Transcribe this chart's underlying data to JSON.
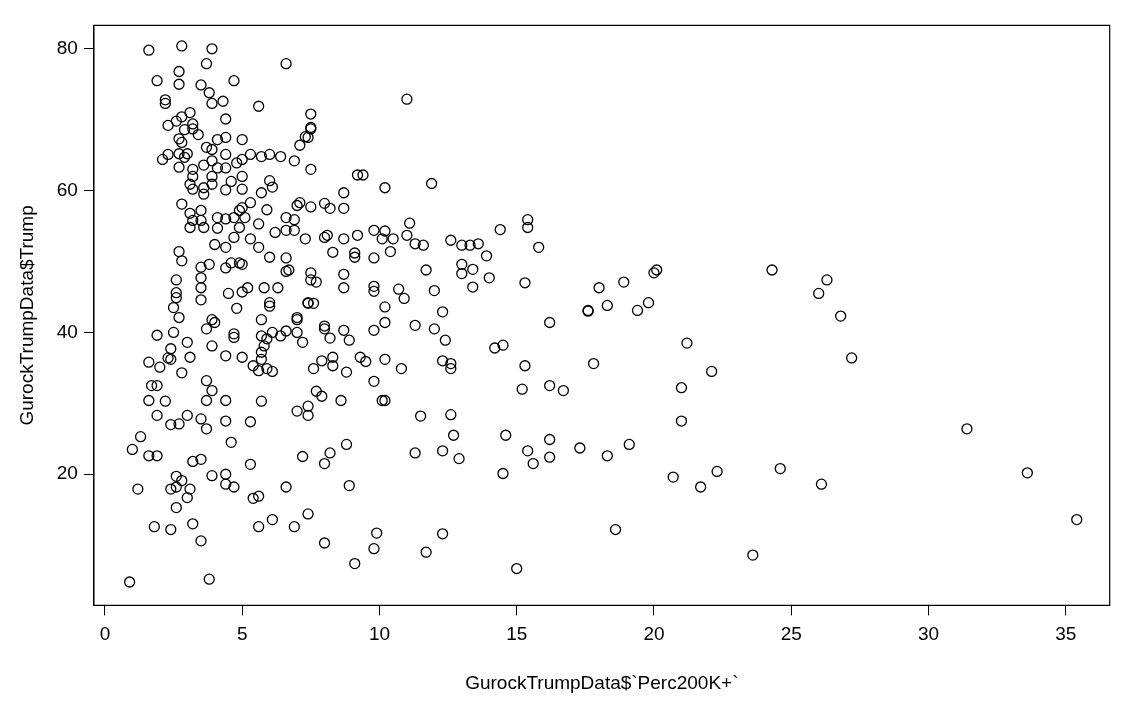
{
  "chart_data": {
    "type": "scatter",
    "xlabel": "GurockTrumpData$`Perc200K+`",
    "ylabel": "GurockTrumpData$Trump",
    "marker": "circle",
    "xlim": [
      -0.4,
      36.6
    ],
    "ylim": [
      1.5,
      83.3
    ],
    "xticks": [
      0,
      5,
      10,
      15,
      20,
      25,
      30,
      35
    ],
    "yticks": [
      20,
      40,
      60,
      80
    ],
    "series": [
      {
        "color": "#000000",
        "x": [
          35.4,
          33.6,
          31.4,
          18.9,
          20.0,
          20.1,
          24.3,
          26.3,
          26.0,
          26.8,
          27.2,
          18.3,
          19.4,
          19.8,
          21.2,
          22.1,
          21.0,
          21.0,
          19.1,
          18.3,
          20.7,
          21.7,
          22.3,
          24.6,
          26.1,
          18.6,
          23.6,
          8.0,
          8.0,
          8.7,
          8.2,
          8.9,
          9.8,
          10.2,
          11.3,
          12.0,
          12.4,
          12.3,
          16.2,
          17.6,
          14.2,
          14.5,
          15.3,
          17.8,
          15.2,
          16.2,
          16.7,
          7.9,
          7.6,
          8.3,
          8.3,
          8.8,
          9.3,
          9.5,
          10.2,
          10.8,
          12.3,
          12.6,
          12.6,
          9.8,
          7.7,
          7.9,
          8.6,
          10.1,
          10.2,
          7.4,
          7.4,
          11.5,
          12.6,
          12.7,
          14.6,
          16.2,
          17.3,
          15.4,
          15.6,
          16.2,
          14.5,
          8.8,
          8.2,
          8.0,
          11.3,
          12.3,
          12.9,
          8.9,
          7.4,
          8.0,
          9.9,
          9.8,
          9.1,
          11.7,
          12.3,
          15.0,
          11.0,
          7.5,
          7.5,
          7.4,
          7.5,
          9.2,
          9.4,
          10.2,
          11.9,
          8.7,
          8.7,
          8.0,
          8.2,
          7.5,
          11.1,
          14.4,
          15.4,
          15.4,
          15.8,
          9.8,
          10.2,
          9.2,
          8.0,
          8.1,
          8.7,
          10.1,
          10.5,
          11.0,
          11.3,
          11.6,
          12.6,
          13.0,
          13.3,
          13.6,
          13.9,
          8.3,
          9.1,
          9.1,
          9.8,
          10.4,
          11.7,
          13.0,
          13.0,
          13.4,
          14.0,
          15.3,
          18.0,
          17.6,
          7.5,
          7.5,
          7.7,
          8.7,
          8.7,
          9.8,
          9.8,
          10.7,
          10.9,
          12.0,
          13.4,
          10.2,
          7.4,
          7.6,
          1.6,
          2.8,
          3.9,
          3.7,
          6.6,
          2.7,
          1.9,
          2.7,
          3.5,
          4.7,
          3.8,
          4.3,
          3.9,
          2.2,
          2.2,
          5.6,
          3.1,
          2.8,
          4.4,
          2.3,
          2.6,
          3.2,
          7.5,
          7.3,
          7.1,
          2.9,
          3.2,
          3.4,
          2.7,
          2.8,
          4.1,
          4.4,
          5.0,
          3.7,
          3.9,
          2.3,
          2.1,
          2.7,
          2.9,
          3.0,
          4.4,
          5.3,
          5.7,
          6.0,
          6.4,
          6.9,
          2.7,
          3.2,
          3.2,
          3.6,
          3.9,
          4.1,
          4.8,
          5.0,
          4.4,
          3.9,
          3.9,
          5.0,
          6.0,
          6.1,
          5.7,
          3.1,
          3.2,
          4.6,
          4.4,
          5.0,
          3.6,
          3.6,
          5.9,
          6.9,
          6.6,
          7.0,
          7.1,
          5.3,
          5.0,
          2.8,
          3.1,
          3.2,
          3.1,
          3.5,
          3.5,
          3.6,
          4.1,
          4.4,
          4.7,
          4.1,
          4.9,
          5.1,
          4.9,
          5.6,
          6.2,
          6.6,
          6.9,
          7.3,
          4.7,
          4.4,
          4.0,
          5.3,
          5.6,
          6.0,
          6.6,
          6.6,
          6.7,
          2.7,
          2.8,
          3.8,
          3.5,
          4.4,
          4.6,
          4.9,
          5.0,
          2.6,
          3.5,
          3.5,
          3.5,
          2.6,
          2.6,
          2.5,
          4.5,
          5.0,
          5.2,
          5.8,
          6.3,
          4.8,
          6.0,
          6.0,
          7.0,
          7.4,
          3.9,
          2.7,
          2.5,
          1.9,
          3.7,
          4.0,
          4.7,
          4.7,
          5.7,
          5.7,
          5.9,
          5.8,
          6.1,
          6.4,
          6.6,
          7.0,
          7.0,
          7.2,
          3.0,
          2.4,
          2.3,
          2.4,
          1.6,
          2.0,
          3.1,
          3.9,
          2.8,
          4.4,
          5.0,
          5.7,
          5.7,
          5.4,
          5.6,
          5.9,
          6.1,
          1.7,
          1.9,
          1.6,
          2.2,
          1.9,
          2.4,
          2.7,
          3.0,
          3.7,
          3.9,
          3.7,
          3.5,
          3.7,
          4.4,
          4.4,
          5.3,
          5.7,
          4.6,
          5.3,
          1.3,
          1.0,
          1.6,
          1.9,
          3.2,
          3.5,
          1.2,
          2.6,
          2.8,
          2.4,
          2.6,
          3.1,
          3.0,
          2.6,
          3.9,
          4.4,
          4.4,
          4.7,
          5.4,
          5.6,
          6.6,
          7.2,
          7.0,
          1.8,
          2.4,
          3.2,
          3.5,
          5.6,
          6.1,
          6.9,
          0.9,
          3.8
        ],
        "values": [
          13.6,
          20.2,
          26.4,
          47.1,
          48.4,
          48.8,
          48.8,
          47.4,
          45.5,
          42.3,
          36.4,
          43.8,
          43.1,
          44.2,
          38.5,
          34.5,
          32.2,
          27.5,
          24.2,
          22.6,
          19.6,
          18.2,
          20.4,
          20.8,
          18.6,
          12.2,
          8.6,
          40.9,
          40.5,
          40.3,
          39.2,
          38.9,
          40.3,
          41.4,
          41.0,
          40.5,
          38.9,
          42.9,
          41.4,
          43.0,
          37.8,
          38.2,
          35.3,
          35.6,
          32.0,
          32.5,
          31.8,
          36.0,
          34.9,
          36.5,
          35.3,
          34.4,
          36.5,
          35.9,
          36.2,
          34.9,
          36.0,
          35.6,
          34.9,
          33.1,
          31.7,
          31.0,
          30.4,
          30.4,
          30.4,
          29.6,
          28.3,
          28.2,
          28.4,
          25.5,
          25.5,
          24.9,
          23.7,
          23.3,
          21.5,
          22.4,
          20.1,
          24.2,
          23.0,
          21.5,
          23.0,
          23.3,
          22.2,
          18.4,
          14.4,
          10.3,
          11.7,
          9.5,
          7.4,
          9.0,
          11.6,
          6.7,
          72.9,
          70.8,
          68.9,
          67.5,
          63.0,
          62.2,
          62.2,
          60.4,
          61.0,
          59.7,
          57.5,
          58.2,
          57.5,
          57.7,
          55.4,
          54.5,
          55.9,
          54.8,
          52.0,
          54.4,
          54.3,
          53.7,
          53.4,
          53.7,
          53.2,
          53.2,
          53.2,
          53.7,
          52.5,
          52.3,
          53.0,
          52.3,
          52.3,
          52.5,
          50.8,
          51.3,
          51.2,
          50.6,
          50.5,
          51.4,
          48.8,
          49.6,
          48.3,
          48.9,
          47.7,
          47.0,
          46.3,
          43.1,
          48.4,
          47.4,
          47.1,
          48.2,
          46.3,
          46.5,
          45.8,
          46.1,
          44.8,
          45.9,
          46.4,
          43.6,
          44.1,
          44.1,
          79.8,
          80.4,
          80.0,
          77.9,
          77.9,
          76.8,
          75.5,
          75.0,
          74.9,
          75.5,
          73.8,
          72.6,
          72.3,
          72.8,
          72.3,
          71.9,
          71.0,
          70.4,
          70.1,
          69.2,
          69.8,
          69.4,
          68.7,
          67.6,
          66.4,
          68.6,
          68.7,
          67.9,
          67.3,
          66.8,
          67.2,
          67.5,
          67.2,
          66.1,
          65.8,
          65.1,
          64.4,
          65.2,
          64.7,
          65.2,
          65.1,
          65.1,
          64.8,
          65.1,
          64.8,
          64.2,
          63.3,
          63.0,
          62.0,
          63.6,
          64.2,
          63.2,
          63.9,
          64.4,
          63.2,
          62.0,
          60.9,
          62.0,
          61.4,
          60.5,
          59.7,
          60.9,
          60.2,
          61.3,
          60.1,
          60.2,
          59.5,
          60.4,
          57.3,
          55.9,
          56.2,
          57.9,
          58.3,
          58.3,
          57.6,
          58.1,
          56.8,
          55.8,
          54.8,
          57.2,
          55.8,
          54.8,
          56.2,
          56.0,
          56.2,
          54.7,
          54.8,
          56.2,
          57.2,
          55.3,
          54.1,
          54.4,
          54.4,
          53.2,
          53.4,
          52.0,
          52.4,
          53.2,
          52.0,
          50.6,
          50.5,
          48.6,
          48.8,
          51.4,
          50.1,
          49.6,
          49.2,
          49.1,
          49.8,
          49.8,
          49.6,
          47.4,
          47.7,
          46.3,
          44.6,
          45.6,
          44.9,
          43.5,
          45.5,
          45.7,
          46.3,
          46.3,
          46.3,
          43.4,
          44.2,
          43.7,
          42.1,
          44.2,
          41.8,
          42.1,
          40.0,
          39.6,
          40.5,
          41.4,
          39.8,
          39.3,
          41.8,
          39.5,
          39.1,
          38.1,
          40.0,
          39.5,
          40.2,
          41.8,
          40.0,
          38.6,
          38.6,
          37.7,
          36.4,
          36.2,
          35.8,
          35.1,
          36.5,
          38.1,
          34.3,
          36.7,
          36.5,
          37.2,
          36.2,
          35.3,
          34.6,
          34.9,
          34.5,
          32.5,
          32.5,
          30.4,
          30.3,
          28.3,
          27.0,
          27.1,
          28.3,
          33.2,
          31.8,
          30.4,
          27.8,
          26.4,
          30.4,
          27.5,
          27.4,
          30.3,
          24.5,
          21.4,
          25.3,
          23.5,
          22.6,
          22.6,
          21.8,
          22.1,
          17.9,
          19.7,
          19.1,
          17.9,
          18.2,
          17.9,
          16.7,
          15.3,
          19.8,
          20.0,
          18.6,
          18.2,
          16.6,
          16.9,
          18.2,
          22.5,
          28.9,
          12.6,
          12.2,
          13.0,
          10.6,
          12.6,
          13.6,
          12.6,
          4.8,
          5.2
        ]
      }
    ]
  }
}
